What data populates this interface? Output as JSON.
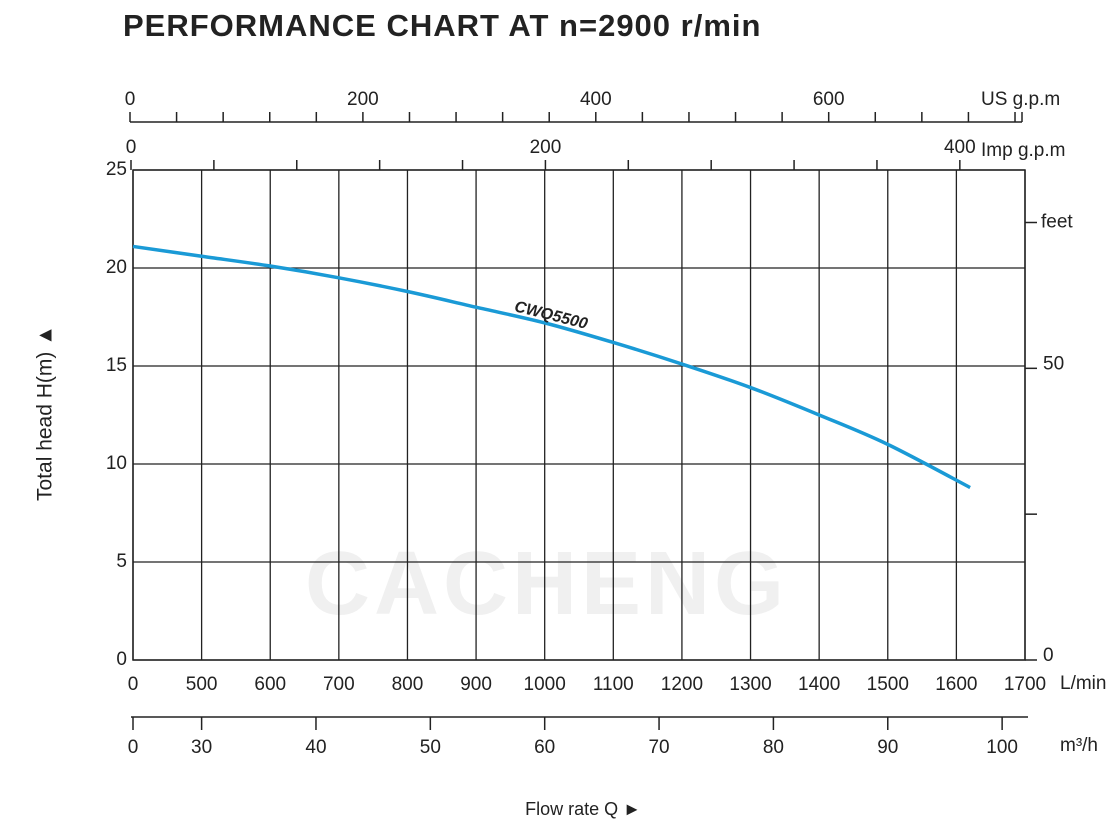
{
  "chart_data": {
    "type": "line",
    "title": "PERFORMANCE CHART AT n=2900 r/min",
    "xlabel": "Flow rate  Q ►",
    "ylabel": "Total  head H(m) ▲",
    "xunit": "L/min",
    "xticks": [
      0,
      500,
      600,
      700,
      800,
      900,
      1000,
      1100,
      1200,
      1300,
      1400,
      1500,
      1600,
      1700
    ],
    "m3h_unit": "m³/h",
    "m3h_ticks": [
      0,
      30,
      40,
      50,
      60,
      70,
      80,
      90,
      100
    ],
    "us_unit": "US g.p.m",
    "us_xlim": [
      0,
      766
    ],
    "us_ticks": [
      0,
      200,
      400,
      600
    ],
    "us_minor_ticks": [
      40,
      80,
      120,
      160,
      240,
      280,
      320,
      360,
      440,
      480,
      520,
      560,
      640,
      680,
      720,
      760
    ],
    "imp_unit": "Imp g.p.m",
    "imp_xlim": [
      0,
      430
    ],
    "imp_ticks": [
      0,
      200,
      400
    ],
    "imp_minor_ticks": [
      40,
      80,
      120,
      160,
      240,
      280,
      320,
      360
    ],
    "ylim": [
      0,
      25
    ],
    "yticks": [
      0,
      5,
      10,
      15,
      20,
      25
    ],
    "y2label": "feet",
    "y2lim": [
      0,
      84
    ],
    "y2ticks": [
      0,
      50
    ],
    "y2_minor_ticks": [
      25,
      75
    ],
    "grid": true,
    "watermark": "CACHENG",
    "series": [
      {
        "name": "CWQ5500",
        "color": "#1a9ad6",
        "x": [
          0,
          500,
          600,
          700,
          800,
          900,
          1000,
          1100,
          1200,
          1300,
          1400,
          1500,
          1620
        ],
        "values": [
          21.1,
          20.6,
          20.1,
          19.5,
          18.8,
          18.0,
          17.2,
          16.2,
          15.1,
          13.9,
          12.5,
          11.0,
          8.8
        ]
      }
    ]
  }
}
